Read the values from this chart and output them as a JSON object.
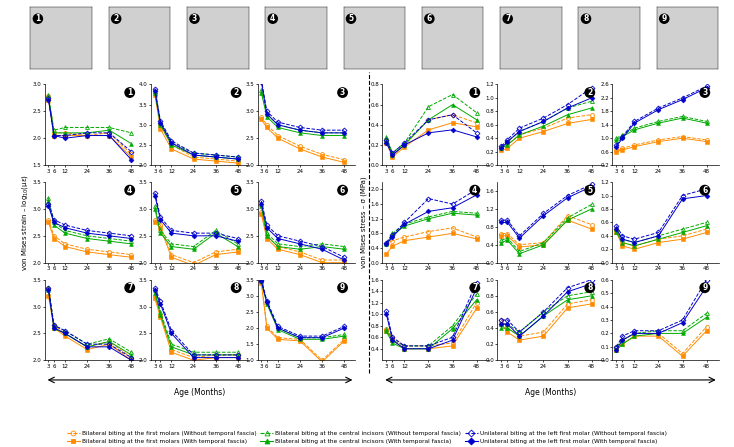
{
  "age_ticks": [
    3,
    6,
    12,
    24,
    36,
    48
  ],
  "strain_panels": {
    "1": {
      "ylim": [
        1.5,
        3.0
      ],
      "yticks": [
        1.5,
        2.0,
        2.5,
        3.0
      ],
      "series": {
        "orange_open": [
          2.78,
          2.1,
          2.1,
          2.05,
          2.1,
          1.7
        ],
        "orange_solid": [
          2.72,
          2.05,
          2.05,
          2.05,
          2.05,
          1.65
        ],
        "green_open": [
          2.8,
          2.15,
          2.2,
          2.2,
          2.2,
          2.1
        ],
        "green_solid": [
          2.75,
          2.1,
          2.1,
          2.1,
          2.15,
          1.9
        ],
        "blue_open": [
          2.75,
          2.05,
          2.05,
          2.1,
          2.1,
          1.75
        ],
        "blue_solid": [
          2.72,
          2.05,
          2.0,
          2.05,
          2.05,
          1.6
        ]
      }
    },
    "2": {
      "ylim": [
        2.0,
        4.0
      ],
      "yticks": [
        2.0,
        2.5,
        3.0,
        3.5,
        4.0
      ],
      "series": {
        "orange_open": [
          3.8,
          3.0,
          2.5,
          2.2,
          2.15,
          2.1
        ],
        "orange_solid": [
          3.75,
          2.9,
          2.4,
          2.15,
          2.1,
          2.05
        ],
        "green_open": [
          3.85,
          3.05,
          2.55,
          2.3,
          2.25,
          2.2
        ],
        "green_solid": [
          3.8,
          3.0,
          2.5,
          2.25,
          2.2,
          2.15
        ],
        "blue_open": [
          3.9,
          3.1,
          2.6,
          2.3,
          2.25,
          2.2
        ],
        "blue_solid": [
          3.85,
          3.05,
          2.55,
          2.25,
          2.2,
          2.15
        ]
      }
    },
    "3": {
      "ylim": [
        2.0,
        3.5
      ],
      "yticks": [
        2.0,
        2.5,
        3.0,
        3.5
      ],
      "series": {
        "orange_open": [
          2.9,
          2.75,
          2.55,
          2.35,
          2.2,
          2.1
        ],
        "orange_solid": [
          2.85,
          2.7,
          2.5,
          2.3,
          2.15,
          2.05
        ],
        "green_open": [
          3.4,
          2.95,
          2.75,
          2.65,
          2.6,
          2.6
        ],
        "green_solid": [
          3.35,
          2.9,
          2.7,
          2.6,
          2.55,
          2.55
        ],
        "blue_open": [
          3.6,
          3.0,
          2.8,
          2.7,
          2.65,
          2.65
        ],
        "blue_solid": [
          3.55,
          2.95,
          2.75,
          2.65,
          2.6,
          2.6
        ]
      }
    },
    "4": {
      "ylim": [
        2.0,
        3.5
      ],
      "yticks": [
        2.0,
        2.5,
        3.0,
        3.5
      ],
      "series": {
        "orange_open": [
          2.8,
          2.5,
          2.35,
          2.25,
          2.2,
          2.15
        ],
        "orange_solid": [
          2.75,
          2.45,
          2.3,
          2.2,
          2.15,
          2.1
        ],
        "green_open": [
          3.2,
          2.75,
          2.6,
          2.5,
          2.45,
          2.4
        ],
        "green_solid": [
          3.15,
          2.7,
          2.55,
          2.45,
          2.4,
          2.35
        ],
        "blue_open": [
          3.1,
          2.8,
          2.7,
          2.6,
          2.55,
          2.5
        ],
        "blue_solid": [
          3.05,
          2.75,
          2.65,
          2.55,
          2.5,
          2.45
        ]
      }
    },
    "5": {
      "ylim": [
        2.0,
        3.5
      ],
      "yticks": [
        2.0,
        2.5,
        3.0,
        3.5
      ],
      "series": {
        "orange_open": [
          2.8,
          2.7,
          2.15,
          2.0,
          2.2,
          2.25
        ],
        "orange_solid": [
          2.75,
          2.65,
          2.1,
          1.95,
          2.15,
          2.2
        ],
        "green_open": [
          3.05,
          2.6,
          2.35,
          2.3,
          2.6,
          2.35
        ],
        "green_solid": [
          3.0,
          2.55,
          2.3,
          2.25,
          2.55,
          2.3
        ],
        "blue_open": [
          3.3,
          2.85,
          2.6,
          2.55,
          2.55,
          2.45
        ],
        "blue_solid": [
          3.25,
          2.8,
          2.55,
          2.5,
          2.5,
          2.4
        ]
      }
    },
    "6": {
      "ylim": [
        2.0,
        3.5
      ],
      "yticks": [
        2.0,
        2.5,
        3.0,
        3.5
      ],
      "series": {
        "orange_open": [
          2.95,
          2.5,
          2.3,
          2.2,
          2.05,
          2.05
        ],
        "orange_solid": [
          2.9,
          2.45,
          2.25,
          2.15,
          2.0,
          2.0
        ],
        "green_open": [
          3.1,
          2.55,
          2.35,
          2.3,
          2.35,
          2.3
        ],
        "green_solid": [
          3.05,
          2.5,
          2.3,
          2.25,
          2.3,
          2.25
        ],
        "blue_open": [
          3.15,
          2.7,
          2.5,
          2.4,
          2.3,
          2.1
        ],
        "blue_solid": [
          3.1,
          2.65,
          2.45,
          2.35,
          2.25,
          2.05
        ]
      }
    },
    "7": {
      "ylim": [
        2.0,
        3.5
      ],
      "yticks": [
        2.0,
        2.5,
        3.0,
        3.5
      ],
      "series": {
        "orange_open": [
          3.35,
          2.65,
          2.5,
          2.25,
          2.35,
          2.05
        ],
        "orange_solid": [
          3.2,
          2.6,
          2.45,
          2.2,
          2.3,
          2.0
        ],
        "green_open": [
          3.35,
          2.65,
          2.55,
          2.3,
          2.4,
          2.15
        ],
        "green_solid": [
          3.3,
          2.6,
          2.5,
          2.25,
          2.35,
          2.1
        ],
        "blue_open": [
          3.35,
          2.65,
          2.55,
          2.3,
          2.3,
          2.05
        ],
        "blue_solid": [
          3.3,
          2.6,
          2.5,
          2.25,
          2.25,
          2.0
        ]
      }
    },
    "8": {
      "ylim": [
        2.0,
        3.5
      ],
      "yticks": [
        2.0,
        2.5,
        3.0,
        3.5
      ],
      "series": {
        "orange_open": [
          3.2,
          2.85,
          2.2,
          2.05,
          2.1,
          2.1
        ],
        "orange_solid": [
          3.15,
          2.8,
          2.15,
          2.0,
          2.05,
          2.05
        ],
        "green_open": [
          3.3,
          2.9,
          2.3,
          2.15,
          2.15,
          2.15
        ],
        "green_solid": [
          3.25,
          2.85,
          2.25,
          2.1,
          2.1,
          2.1
        ],
        "blue_open": [
          3.35,
          3.1,
          2.55,
          2.1,
          2.1,
          2.1
        ],
        "blue_solid": [
          3.3,
          3.05,
          2.5,
          2.05,
          2.05,
          2.05
        ]
      }
    },
    "9": {
      "ylim": [
        1.0,
        3.5
      ],
      "yticks": [
        1.0,
        1.5,
        2.0,
        2.5,
        3.0,
        3.5
      ],
      "series": {
        "orange_open": [
          3.45,
          2.05,
          1.7,
          1.65,
          1.0,
          1.65
        ],
        "orange_solid": [
          3.4,
          2.0,
          1.65,
          1.6,
          0.95,
          1.6
        ],
        "green_open": [
          3.5,
          2.8,
          2.0,
          1.7,
          1.7,
          1.8
        ],
        "green_solid": [
          3.45,
          2.75,
          1.95,
          1.65,
          1.65,
          1.75
        ],
        "blue_open": [
          3.5,
          2.85,
          2.05,
          1.75,
          1.75,
          2.05
        ],
        "blue_solid": [
          3.45,
          2.8,
          2.0,
          1.7,
          1.7,
          2.0
        ]
      }
    }
  },
  "stress_panels": {
    "1": {
      "ylim": [
        0.0,
        0.8
      ],
      "yticks": [
        0.0,
        0.2,
        0.4,
        0.6,
        0.8
      ],
      "series": {
        "orange_open": [
          0.25,
          0.1,
          0.2,
          0.45,
          0.5,
          0.42
        ],
        "orange_solid": [
          0.22,
          0.08,
          0.18,
          0.35,
          0.42,
          0.38
        ],
        "green_open": [
          0.28,
          0.12,
          0.22,
          0.58,
          0.7,
          0.52
        ],
        "green_solid": [
          0.25,
          0.1,
          0.2,
          0.45,
          0.6,
          0.45
        ],
        "blue_open": [
          0.25,
          0.12,
          0.22,
          0.45,
          0.5,
          0.32
        ],
        "blue_solid": [
          0.22,
          0.1,
          0.2,
          0.32,
          0.35,
          0.28
        ]
      }
    },
    "2": {
      "ylim": [
        0.0,
        1.2
      ],
      "yticks": [
        0.0,
        0.2,
        0.4,
        0.6,
        0.8,
        1.0,
        1.2
      ],
      "series": {
        "orange_open": [
          0.25,
          0.3,
          0.45,
          0.55,
          0.7,
          0.75
        ],
        "orange_solid": [
          0.22,
          0.25,
          0.4,
          0.5,
          0.62,
          0.68
        ],
        "green_open": [
          0.28,
          0.35,
          0.5,
          0.65,
          0.85,
          0.95
        ],
        "green_solid": [
          0.25,
          0.3,
          0.45,
          0.58,
          0.75,
          0.85
        ],
        "blue_open": [
          0.28,
          0.38,
          0.55,
          0.7,
          0.9,
          1.15
        ],
        "blue_solid": [
          0.25,
          0.35,
          0.5,
          0.65,
          0.85,
          1.0
        ]
      }
    },
    "3": {
      "ylim": [
        0.2,
        2.6
      ],
      "yticks": [
        0.2,
        0.6,
        1.0,
        1.4,
        1.8,
        2.2,
        2.6
      ],
      "series": {
        "orange_open": [
          0.65,
          0.7,
          0.8,
          0.95,
          1.05,
          0.95
        ],
        "orange_solid": [
          0.6,
          0.65,
          0.75,
          0.9,
          1.0,
          0.9
        ],
        "green_open": [
          1.0,
          1.1,
          1.3,
          1.5,
          1.65,
          1.5
        ],
        "green_solid": [
          0.95,
          1.05,
          1.25,
          1.45,
          1.6,
          1.45
        ],
        "blue_open": [
          0.8,
          1.05,
          1.5,
          1.9,
          2.2,
          2.55
        ],
        "blue_solid": [
          0.75,
          1.0,
          1.45,
          1.85,
          2.15,
          2.5
        ]
      }
    },
    "4": {
      "ylim": [
        0.0,
        2.2
      ],
      "yticks": [
        0.0,
        0.4,
        0.8,
        1.2,
        1.6,
        2.0
      ],
      "series": {
        "orange_open": [
          0.5,
          0.6,
          0.7,
          0.85,
          0.95,
          0.7
        ],
        "orange_solid": [
          0.25,
          0.45,
          0.6,
          0.7,
          0.8,
          0.65
        ],
        "green_open": [
          0.55,
          0.8,
          1.05,
          1.25,
          1.4,
          1.35
        ],
        "green_solid": [
          0.5,
          0.75,
          1.0,
          1.2,
          1.35,
          1.3
        ],
        "blue_open": [
          0.55,
          0.75,
          1.1,
          1.75,
          1.6,
          2.0
        ],
        "blue_solid": [
          0.5,
          0.7,
          1.05,
          1.4,
          1.5,
          1.85
        ]
      }
    },
    "5": {
      "ylim": [
        0.0,
        1.8
      ],
      "yticks": [
        0.0,
        0.4,
        0.8,
        1.2,
        1.6
      ],
      "series": {
        "orange_open": [
          0.65,
          0.65,
          0.4,
          0.45,
          1.05,
          0.85
        ],
        "orange_solid": [
          0.6,
          0.6,
          0.35,
          0.4,
          0.95,
          0.75
        ],
        "green_open": [
          0.5,
          0.55,
          0.25,
          0.45,
          1.0,
          1.3
        ],
        "green_solid": [
          0.45,
          0.5,
          0.2,
          0.4,
          0.95,
          1.2
        ],
        "blue_open": [
          0.95,
          0.95,
          0.6,
          1.1,
          1.5,
          1.75
        ],
        "blue_solid": [
          0.9,
          0.9,
          0.55,
          1.05,
          1.45,
          1.7
        ]
      }
    },
    "6": {
      "ylim": [
        0.0,
        1.2
      ],
      "yticks": [
        0.0,
        0.2,
        0.4,
        0.6,
        0.8,
        1.0,
        1.2
      ],
      "series": {
        "orange_open": [
          0.5,
          0.3,
          0.25,
          0.35,
          0.4,
          0.5
        ],
        "orange_solid": [
          0.45,
          0.25,
          0.2,
          0.3,
          0.35,
          0.45
        ],
        "green_open": [
          0.5,
          0.35,
          0.3,
          0.4,
          0.5,
          0.6
        ],
        "green_solid": [
          0.45,
          0.3,
          0.25,
          0.35,
          0.45,
          0.55
        ],
        "blue_open": [
          0.55,
          0.4,
          0.35,
          0.45,
          1.0,
          1.1
        ],
        "blue_solid": [
          0.5,
          0.35,
          0.3,
          0.4,
          0.95,
          1.0
        ]
      }
    },
    "7": {
      "ylim": [
        0.2,
        1.6
      ],
      "yticks": [
        0.4,
        0.6,
        0.8,
        1.0,
        1.2,
        1.4,
        1.6
      ],
      "series": {
        "orange_open": [
          0.75,
          0.6,
          0.45,
          0.45,
          0.5,
          1.2
        ],
        "orange_solid": [
          0.7,
          0.55,
          0.4,
          0.4,
          0.45,
          1.1
        ],
        "green_open": [
          0.75,
          0.55,
          0.45,
          0.45,
          0.8,
          1.35
        ],
        "green_solid": [
          0.7,
          0.5,
          0.4,
          0.4,
          0.75,
          1.25
        ],
        "blue_open": [
          1.05,
          0.6,
          0.45,
          0.45,
          0.6,
          1.55
        ],
        "blue_solid": [
          1.0,
          0.55,
          0.4,
          0.4,
          0.55,
          1.45
        ]
      }
    },
    "8": {
      "ylim": [
        0.0,
        1.0
      ],
      "yticks": [
        0.0,
        0.2,
        0.4,
        0.6,
        0.8,
        1.0
      ],
      "series": {
        "orange_open": [
          0.5,
          0.4,
          0.3,
          0.35,
          0.7,
          0.75
        ],
        "orange_solid": [
          0.45,
          0.35,
          0.25,
          0.3,
          0.65,
          0.7
        ],
        "green_open": [
          0.45,
          0.45,
          0.35,
          0.6,
          0.8,
          0.85
        ],
        "green_solid": [
          0.4,
          0.4,
          0.3,
          0.55,
          0.75,
          0.8
        ],
        "blue_open": [
          0.5,
          0.5,
          0.35,
          0.6,
          0.9,
          1.0
        ],
        "blue_solid": [
          0.45,
          0.45,
          0.3,
          0.55,
          0.85,
          0.95
        ]
      }
    },
    "9": {
      "ylim": [
        0.0,
        0.6
      ],
      "yticks": [
        0.0,
        0.1,
        0.2,
        0.3,
        0.4,
        0.5,
        0.6
      ],
      "series": {
        "orange_open": [
          0.1,
          0.15,
          0.2,
          0.2,
          0.05,
          0.25
        ],
        "orange_solid": [
          0.08,
          0.12,
          0.18,
          0.18,
          0.03,
          0.22
        ],
        "green_open": [
          0.1,
          0.15,
          0.2,
          0.22,
          0.22,
          0.35
        ],
        "green_solid": [
          0.08,
          0.12,
          0.18,
          0.2,
          0.2,
          0.32
        ],
        "blue_open": [
          0.1,
          0.18,
          0.22,
          0.22,
          0.3,
          0.6
        ],
        "blue_solid": [
          0.08,
          0.15,
          0.2,
          0.2,
          0.28,
          0.55
        ]
      }
    }
  },
  "colors": {
    "orange": "#FF8C00",
    "green": "#00AA00",
    "blue": "#0000CC"
  },
  "strain_ylabel": "von Mises strain – log$_{10}$(με)",
  "stress_ylabel": "von Mises stress – σ (MPa)",
  "xlabel": "Age (Months)",
  "legend": [
    {
      "label": "Bilateral biting at the first molars (Without temporal fascia)",
      "color": "#FF8C00",
      "ls": "--",
      "marker": "o",
      "filled": false
    },
    {
      "label": "Bilateral biting at the first molars (With temporal fascia)",
      "color": "#FF8C00",
      "ls": "-",
      "marker": "s",
      "filled": true
    },
    {
      "label": "Bilateral biting at the central incisors (Without temporal fascia)",
      "color": "#00AA00",
      "ls": "--",
      "marker": "^",
      "filled": false
    },
    {
      "label": "Bilateral biting at the central incisors (With temporal fascia)",
      "color": "#00AA00",
      "ls": "-",
      "marker": "^",
      "filled": true
    },
    {
      "label": "Unilateral biting at the left first molar (Without temporal fascia)",
      "color": "#0000CC",
      "ls": "--",
      "marker": "D",
      "filled": false
    },
    {
      "label": "Unilateral biting at the left first molar (With temporal fascia)",
      "color": "#0000CC",
      "ls": "-",
      "marker": "D",
      "filled": true
    }
  ]
}
